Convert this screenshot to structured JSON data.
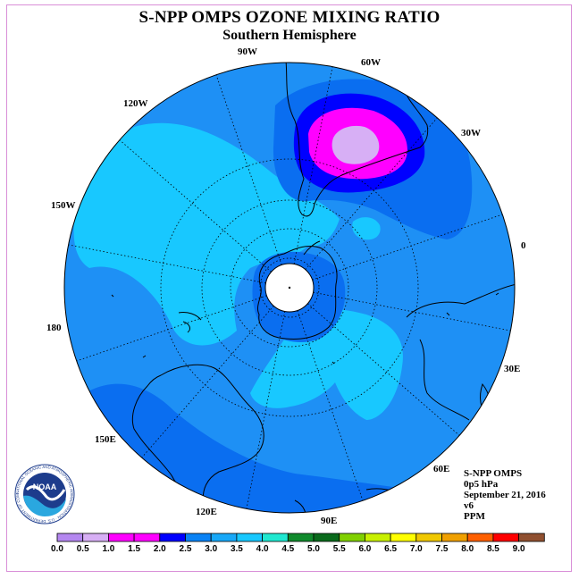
{
  "title": "S-NPP OMPS OZONE MIXING RATIO",
  "subtitle": "Southern Hemisphere",
  "info": {
    "instrument": "S-NPP OMPS",
    "level": "0p5 hPa",
    "date": "September 21, 2016",
    "version": "v6",
    "units": "PPM"
  },
  "logo": {
    "text": "NOAA",
    "ring_text": "NATIONAL OCEANIC AND ATMOSPHERIC ADMINISTRATION · U.S. DEPARTMENT OF COMMERCE"
  },
  "longitude_labels": [
    "90W",
    "60W",
    "30W",
    "0",
    "30E",
    "60E",
    "90E",
    "120E",
    "150E",
    "180",
    "150W",
    "120W"
  ],
  "colorbar": {
    "ticks": [
      "0.0",
      "0.5",
      "1.0",
      "1.5",
      "2.0",
      "2.5",
      "3.0",
      "3.5",
      "4.0",
      "4.5",
      "5.0",
      "5.5",
      "6.0",
      "6.5",
      "7.0",
      "7.5",
      "8.0",
      "8.5",
      "9.0"
    ],
    "colors": [
      "#b487f0",
      "#d7aff5",
      "#ff00ff",
      "#ff00ff",
      "#0000ff",
      "#0a82f5",
      "#18a8f8",
      "#18c8ff",
      "#20e8d0",
      "#108a2c",
      "#0a6a1c",
      "#80d000",
      "#c8f000",
      "#ffff00",
      "#f0c800",
      "#f0a000",
      "#ff6000",
      "#ff0000",
      "#905030"
    ]
  },
  "map_colors": {
    "background": "#1e90f5",
    "light": "#18c8ff",
    "dark": "#0a6ef0",
    "blue": "#0000ff",
    "magenta": "#ff00ff",
    "lilac": "#d7aff5",
    "pole": "#ffffff"
  }
}
